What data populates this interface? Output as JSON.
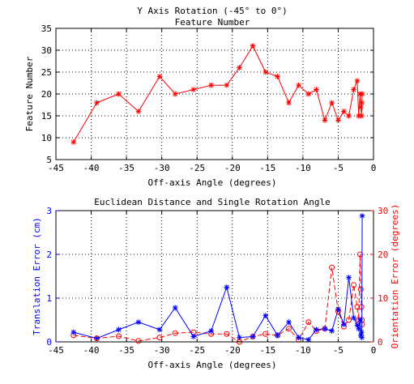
{
  "chart_data": [
    {
      "type": "line",
      "title": "Y Axis Rotation (-45° to 0°)",
      "subtitle": "Feature Number",
      "xlabel": "Off-axis Angle (degrees)",
      "ylabel": "Feature Number",
      "xlim": [
        -45,
        0
      ],
      "ylim": [
        5,
        35
      ],
      "xticks": [
        -45,
        -40,
        -35,
        -30,
        -25,
        -20,
        -15,
        -10,
        -5,
        0
      ],
      "yticks": [
        5,
        10,
        15,
        20,
        25,
        30,
        35
      ],
      "grid": true,
      "series": [
        {
          "color": "#ff0000",
          "marker": "star",
          "line": "solid",
          "x": [
            -42.5,
            -39.2,
            -36.1,
            -33.3,
            -30.3,
            -28.1,
            -25.5,
            -23.0,
            -20.8,
            -19.0,
            -17.1,
            -15.3,
            -13.6,
            -12.0,
            -10.6,
            -9.2,
            -8.1,
            -6.9,
            -5.9,
            -5.0,
            -4.2,
            -3.5,
            -2.8,
            -2.3,
            -2.1,
            -1.9,
            -1.8,
            -1.7,
            -1.65,
            -1.6
          ],
          "y": [
            9,
            18,
            20,
            16,
            24,
            20,
            21,
            22,
            22,
            26,
            31,
            25,
            24,
            18,
            22,
            20,
            21,
            14,
            18,
            14,
            16,
            15,
            21,
            23,
            15,
            20,
            17,
            15,
            18,
            20
          ]
        }
      ]
    },
    {
      "type": "line",
      "title": "Euclidean Distance and Single Rotation Angle",
      "xlabel": "Off-axis Angle (degrees)",
      "ylabel_left": "Translation Error (cm)",
      "ylabel_right": "Orientation Error (degrees)",
      "xlim": [
        -45,
        0
      ],
      "ylim_left": [
        0,
        3
      ],
      "ylim_right": [
        0,
        30
      ],
      "xticks": [
        -45,
        -40,
        -35,
        -30,
        -25,
        -20,
        -15,
        -10,
        -5,
        0
      ],
      "yticks_left": [
        0,
        1,
        2,
        3
      ],
      "yticks_right": [
        0,
        10,
        20,
        30
      ],
      "grid": true,
      "series": [
        {
          "axis": "left",
          "color": "#0000ff",
          "marker": "star",
          "line": "solid",
          "x": [
            -42.5,
            -39.2,
            -36.1,
            -33.3,
            -30.3,
            -28.1,
            -25.5,
            -23.0,
            -20.8,
            -19.0,
            -17.1,
            -15.3,
            -13.6,
            -12.0,
            -10.6,
            -9.2,
            -8.1,
            -6.9,
            -5.9,
            -5.0,
            -4.2,
            -3.5,
            -2.8,
            -2.3,
            -2.1,
            -1.9,
            -1.8,
            -1.7,
            -1.65,
            -1.6
          ],
          "y": [
            0.22,
            0.08,
            0.28,
            0.45,
            0.28,
            0.78,
            0.12,
            0.25,
            1.25,
            0.1,
            0.12,
            0.6,
            0.15,
            0.45,
            0.1,
            0.05,
            0.28,
            0.3,
            0.25,
            0.75,
            0.4,
            1.47,
            0.55,
            0.38,
            0.3,
            0.5,
            0.15,
            0.22,
            0.1,
            2.88
          ]
        },
        {
          "axis": "right",
          "color": "#ff0000",
          "marker": "circle",
          "line": "dashed",
          "x": [
            -42.5,
            -39.2,
            -36.1,
            -33.3,
            -30.3,
            -28.1,
            -25.5,
            -23.0,
            -20.8,
            -19.0,
            -17.1,
            -15.3,
            -13.6,
            -12.0,
            -10.6,
            -9.2,
            -8.1,
            -6.9,
            -5.9,
            -5.0,
            -4.2,
            -3.5,
            -2.8,
            -2.3,
            -2.1,
            -1.9,
            -1.8,
            -1.7,
            -1.65,
            -1.6
          ],
          "y": [
            1.5,
            0.8,
            1.3,
            0.2,
            1.0,
            2.0,
            2.2,
            1.8,
            1.8,
            0.0,
            1.2,
            1.8,
            1.5,
            3.0,
            0.5,
            4.5,
            2.5,
            3.0,
            17.0,
            7.0,
            3.5,
            5.0,
            13.0,
            8.0,
            5.0,
            20.0,
            12.0,
            8.0,
            5.0,
            4.0
          ]
        }
      ]
    }
  ]
}
